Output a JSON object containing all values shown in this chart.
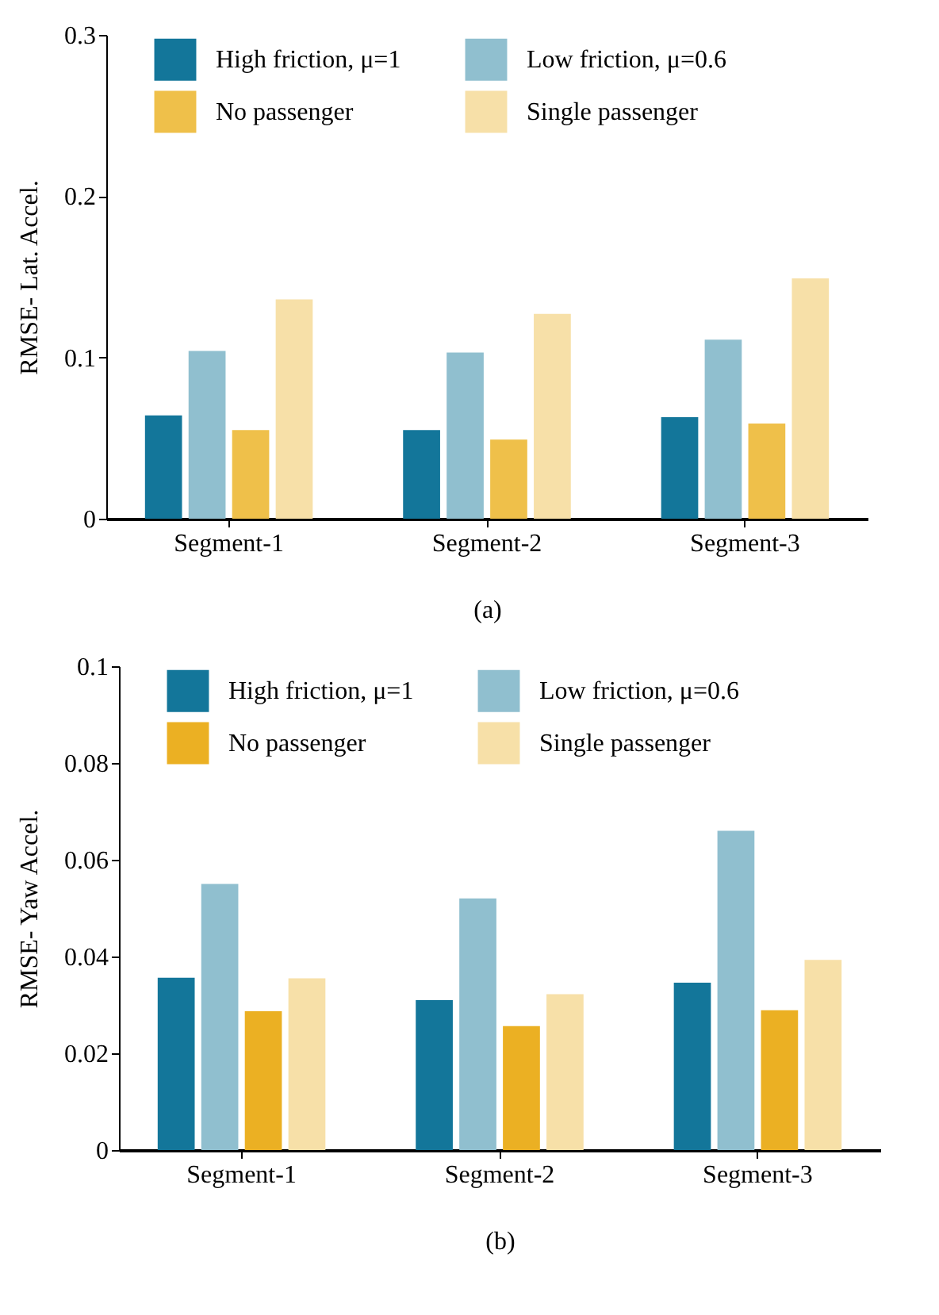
{
  "chart_data": [
    {
      "type": "bar",
      "xlabel": "(a)",
      "ylabel": "RMSE- Lat. Accel.",
      "categories": [
        "Segment-1",
        "Segment-2",
        "Segment-3"
      ],
      "ylim": [
        0,
        0.3
      ],
      "yticks": [
        0,
        0.1,
        0.2,
        0.3
      ],
      "legend": "top",
      "series": [
        {
          "name": "High friction, μ=1",
          "color": "#13769a",
          "values": [
            0.064,
            0.055,
            0.063
          ]
        },
        {
          "name": "Low friction, μ=0.6",
          "color": "#90bfcf",
          "values": [
            0.104,
            0.103,
            0.111
          ]
        },
        {
          "name": "No passenger",
          "color": "#efc04a",
          "values": [
            0.055,
            0.049,
            0.059
          ]
        },
        {
          "name": "Single passenger",
          "color": "#f7e0a8",
          "values": [
            0.136,
            0.127,
            0.149
          ]
        }
      ]
    },
    {
      "type": "bar",
      "xlabel": "(b)",
      "ylabel": "RMSE- Yaw Accel.",
      "categories": [
        "Segment-1",
        "Segment-2",
        "Segment-3"
      ],
      "ylim": [
        0,
        0.1
      ],
      "yticks": [
        0,
        0.02,
        0.04,
        0.06,
        0.08,
        0.1
      ],
      "legend": "top",
      "series": [
        {
          "name": "High friction, μ=1",
          "color": "#13769a",
          "values": [
            0.0356,
            0.031,
            0.0346
          ]
        },
        {
          "name": "Low friction, μ=0.6",
          "color": "#90bfcf",
          "values": [
            0.055,
            0.052,
            0.066
          ]
        },
        {
          "name": "No passenger",
          "color": "#ebb023",
          "values": [
            0.0287,
            0.0256,
            0.0289
          ]
        },
        {
          "name": "Single passenger",
          "color": "#f7e0a8",
          "values": [
            0.0355,
            0.0322,
            0.0393
          ]
        }
      ]
    }
  ]
}
